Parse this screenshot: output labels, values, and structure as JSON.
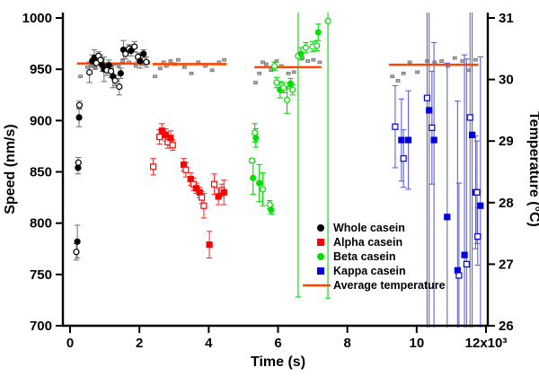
{
  "chart_data": {
    "type": "scatter",
    "title": "",
    "xlabel": "Time (s)",
    "ylabel_left": "Speed (nm/s)",
    "ylabel_right": "Temperature (°C)",
    "axes": {
      "x": {
        "label": "Time (s)",
        "range": [
          0,
          12000
        ],
        "ticks": [
          0,
          2000,
          4000,
          6000,
          8000,
          10000,
          12000
        ],
        "tick_labels": [
          "0",
          "2",
          "4",
          "6",
          "8",
          "10",
          "12x10³"
        ]
      },
      "y_left": {
        "label": "Speed (nm/s)",
        "range": [
          700,
          1000
        ],
        "ticks": [
          700,
          750,
          800,
          850,
          900,
          950,
          1000
        ]
      },
      "y_right": {
        "label": "Temperature (°C)",
        "range": [
          26,
          31
        ],
        "ticks": [
          26,
          27,
          28,
          29,
          30,
          31
        ]
      }
    },
    "grid": false,
    "legend": {
      "position": "lower-middle-right",
      "items": [
        {
          "label": "Whole casein",
          "marker": "circle",
          "color": "#000000"
        },
        {
          "label": "Alpha casein",
          "marker": "square",
          "color": "#FF0000"
        },
        {
          "label": "Beta casein",
          "marker": "circle",
          "color": "#00DD00"
        },
        {
          "label": "Kappa casein",
          "marker": "square",
          "color": "#0000DD"
        },
        {
          "label": "Average temperature",
          "marker": "line",
          "color": "#FF4500"
        }
      ]
    },
    "avg_temperature": {
      "color": "#FF4500",
      "segments": [
        {
          "t0": 200,
          "t1": 2300,
          "temp": 30.26
        },
        {
          "t0": 2380,
          "t1": 4520,
          "temp": 30.25
        },
        {
          "t0": 5320,
          "t1": 7250,
          "temp": 30.2
        },
        {
          "t0": 9200,
          "t1": 11780,
          "temp": 30.24
        }
      ]
    },
    "temperature_points": {
      "color": "#AAAAAA",
      "border": "#666666",
      "values": [
        [
          300,
          30.05
        ],
        [
          500,
          30.2
        ],
        [
          620,
          30.22
        ],
        [
          720,
          30.18
        ],
        [
          900,
          30.28
        ],
        [
          1050,
          30.25
        ],
        [
          1200,
          30.2
        ],
        [
          1400,
          30.22
        ],
        [
          1520,
          30.3
        ],
        [
          1700,
          30.28
        ],
        [
          1900,
          30.22
        ],
        [
          2100,
          30.25
        ],
        [
          2250,
          30.28
        ],
        [
          2450,
          30.05
        ],
        [
          2600,
          30.18
        ],
        [
          2700,
          30.28
        ],
        [
          2780,
          30.22
        ],
        [
          2900,
          30.3
        ],
        [
          3020,
          30.25
        ],
        [
          3120,
          30.32
        ],
        [
          3300,
          30.2
        ],
        [
          3500,
          30.1
        ],
        [
          3700,
          30.28
        ],
        [
          3900,
          30.22
        ],
        [
          4100,
          30.15
        ],
        [
          4300,
          30.28
        ],
        [
          4450,
          30.32
        ],
        [
          5350,
          29.95
        ],
        [
          5460,
          30.1
        ],
        [
          5560,
          30.28
        ],
        [
          5660,
          30.25
        ],
        [
          5800,
          30.15
        ],
        [
          5960,
          30.3
        ],
        [
          6100,
          30.22
        ],
        [
          6300,
          30.1
        ],
        [
          6460,
          30.12
        ],
        [
          6700,
          30.35
        ],
        [
          6860,
          30.3
        ],
        [
          7020,
          30.32
        ],
        [
          7200,
          30.28
        ],
        [
          9300,
          30.05
        ],
        [
          9460,
          29.98
        ],
        [
          9620,
          30.1
        ],
        [
          9800,
          30.28
        ],
        [
          10020,
          30.12
        ],
        [
          10300,
          30.3
        ],
        [
          10520,
          30.28
        ],
        [
          10720,
          30.3
        ],
        [
          10900,
          30.22
        ],
        [
          11100,
          30.35
        ],
        [
          11320,
          30.3
        ],
        [
          11500,
          30.15
        ],
        [
          11700,
          30.32
        ]
      ]
    },
    "series": [
      {
        "name": "Whole casein",
        "marker": "circle",
        "color": "#000000",
        "bar_color": "#777777",
        "points": [
          {
            "t": 180,
            "v": 772,
            "open": 1,
            "err": 8
          },
          {
            "t": 210,
            "v": 782,
            "err": 16
          },
          {
            "t": 230,
            "v": 854,
            "err": 6
          },
          {
            "t": 240,
            "v": 859,
            "open": 1,
            "err": 5
          },
          {
            "t": 260,
            "v": 903,
            "err": 9
          },
          {
            "t": 270,
            "v": 915,
            "open": 1,
            "err": 4
          },
          {
            "t": 560,
            "v": 947,
            "open": 1,
            "err": 10
          },
          {
            "t": 640,
            "v": 958,
            "err": 6
          },
          {
            "t": 700,
            "v": 961,
            "err": 8
          },
          {
            "t": 760,
            "v": 956,
            "open": 1,
            "err": 5
          },
          {
            "t": 820,
            "v": 963,
            "open": 1,
            "err": 4
          },
          {
            "t": 880,
            "v": 959,
            "open": 1,
            "err": 5
          },
          {
            "t": 930,
            "v": 954,
            "err": 6
          },
          {
            "t": 980,
            "v": 950,
            "err": 12
          },
          {
            "t": 1060,
            "v": 949,
            "open": 1,
            "err": 5
          },
          {
            "t": 1120,
            "v": 954,
            "err": 5
          },
          {
            "t": 1180,
            "v": 948,
            "open": 1,
            "err": 6
          },
          {
            "t": 1240,
            "v": 943,
            "err": 11
          },
          {
            "t": 1300,
            "v": 939,
            "open": 1,
            "err": 5
          },
          {
            "t": 1420,
            "v": 933,
            "open": 1,
            "err": 8
          },
          {
            "t": 1460,
            "v": 946,
            "err": 5
          },
          {
            "t": 1540,
            "v": 969,
            "err": 9
          },
          {
            "t": 1600,
            "v": 965,
            "open": 1,
            "err": 5
          },
          {
            "t": 1700,
            "v": 970,
            "open": 1,
            "err": 4
          },
          {
            "t": 1760,
            "v": 968,
            "err": 5
          },
          {
            "t": 1860,
            "v": 972,
            "open": 1,
            "err": 5
          },
          {
            "t": 1960,
            "v": 962,
            "open": 1,
            "err": 4
          },
          {
            "t": 2020,
            "v": 958,
            "err": 7
          },
          {
            "t": 2120,
            "v": 965,
            "err": 4
          },
          {
            "t": 2200,
            "v": 957,
            "open": 1,
            "err": 5
          }
        ]
      },
      {
        "name": "Alpha casein",
        "marker": "square",
        "color": "#FF0000",
        "bar_color": "#FF3333",
        "points": [
          {
            "t": 2400,
            "v": 855,
            "open": 1,
            "err": 8
          },
          {
            "t": 2580,
            "v": 884,
            "open": 1,
            "err": 7
          },
          {
            "t": 2650,
            "v": 890,
            "err": 7
          },
          {
            "t": 2760,
            "v": 886,
            "err": 6
          },
          {
            "t": 2820,
            "v": 879,
            "open": 1,
            "err": 6
          },
          {
            "t": 2900,
            "v": 883,
            "err": 7
          },
          {
            "t": 2960,
            "v": 876,
            "open": 1,
            "err": 5
          },
          {
            "t": 3280,
            "v": 857,
            "err": 6
          },
          {
            "t": 3340,
            "v": 852,
            "open": 1,
            "err": 7
          },
          {
            "t": 3480,
            "v": 843,
            "err": 6
          },
          {
            "t": 3560,
            "v": 838,
            "open": 1,
            "err": 6
          },
          {
            "t": 3640,
            "v": 834,
            "err": 5
          },
          {
            "t": 3740,
            "v": 830,
            "err": 5
          },
          {
            "t": 3800,
            "v": 825,
            "open": 1,
            "err": 6
          },
          {
            "t": 3860,
            "v": 817,
            "open": 1,
            "err": 12
          },
          {
            "t": 4020,
            "v": 779,
            "err": 13
          },
          {
            "t": 4160,
            "v": 838,
            "open": 1,
            "err": 10
          },
          {
            "t": 4280,
            "v": 826,
            "err": 8
          },
          {
            "t": 4380,
            "v": 832,
            "open": 1,
            "err": 6
          },
          {
            "t": 4440,
            "v": 830,
            "err": 12
          }
        ]
      },
      {
        "name": "Beta casein",
        "marker": "circle",
        "color": "#00DD00",
        "bar_color": "#00DD00",
        "points": [
          {
            "t": 5250,
            "v": 861,
            "open": 1,
            "err": 2
          },
          {
            "t": 5280,
            "v": 844,
            "err": 16
          },
          {
            "t": 5330,
            "v": 888,
            "open": 1,
            "err": 9
          },
          {
            "t": 5360,
            "v": 883,
            "err": 9
          },
          {
            "t": 5460,
            "v": 839,
            "err": 18
          },
          {
            "t": 5560,
            "v": 833,
            "open": 1,
            "err": 16
          },
          {
            "t": 5760,
            "v": 818,
            "open": 1,
            "err": 4
          },
          {
            "t": 5800,
            "v": 813,
            "err": 4
          },
          {
            "t": 5900,
            "v": 953,
            "open": 1,
            "err": 4
          },
          {
            "t": 5960,
            "v": 937,
            "open": 1,
            "err": 5
          },
          {
            "t": 6060,
            "v": 930,
            "err": 8
          },
          {
            "t": 6160,
            "v": 932,
            "open": 1,
            "err": 5
          },
          {
            "t": 6260,
            "v": 920,
            "open": 1,
            "err": 13
          },
          {
            "t": 6360,
            "v": 936,
            "err": 5
          },
          {
            "t": 6420,
            "v": 930,
            "open": 1,
            "err": 5
          },
          {
            "t": 6580,
            "v": 963,
            "open": 1,
            "err_low": 235,
            "err_high": 45
          },
          {
            "t": 6660,
            "v": 965,
            "err": 6
          },
          {
            "t": 6800,
            "v": 971,
            "open": 1,
            "err": 5
          },
          {
            "t": 7000,
            "v": 972,
            "open": 1,
            "err": 5
          },
          {
            "t": 7120,
            "v": 973,
            "open": 1,
            "err": 5
          },
          {
            "t": 7160,
            "v": 986,
            "err": 8
          },
          {
            "t": 7440,
            "v": 997,
            "open": 1,
            "err_low": 270,
            "err_high": 15
          }
        ]
      },
      {
        "name": "Kappa casein",
        "marker": "square",
        "color": "#0000DD",
        "bar_color": "#6060E8",
        "points": [
          {
            "t": 9380,
            "v": 894,
            "open": 1,
            "err": 40
          },
          {
            "t": 9560,
            "v": 881,
            "err": 40
          },
          {
            "t": 9620,
            "v": 863,
            "open": 1,
            "err": 28
          },
          {
            "t": 9760,
            "v": 881,
            "err": 48
          },
          {
            "t": 10300,
            "v": 922,
            "open": 1,
            "err_low": 250,
            "err_high": 100
          },
          {
            "t": 10360,
            "v": 910,
            "err_low": 255,
            "err_high": 105
          },
          {
            "t": 10440,
            "v": 893,
            "open": 1,
            "err": 55
          },
          {
            "t": 10500,
            "v": 881,
            "err_low": 245,
            "err_high": 95
          },
          {
            "t": 10880,
            "v": 806,
            "err_low": 185,
            "err_high": 150
          },
          {
            "t": 11180,
            "v": 754,
            "err_low": 105,
            "err_high": 165
          },
          {
            "t": 11220,
            "v": 749,
            "open": 1,
            "err": 90
          },
          {
            "t": 11380,
            "v": 769,
            "err_low": 125,
            "err_high": 195
          },
          {
            "t": 11440,
            "v": 760,
            "open": 1,
            "err_low": 115,
            "err_high": 200
          },
          {
            "t": 11540,
            "v": 903,
            "open": 1,
            "err_low": 265,
            "err_high": 130
          },
          {
            "t": 11600,
            "v": 886,
            "err_low": 255,
            "err_high": 130
          },
          {
            "t": 11700,
            "v": 830,
            "err": 55
          },
          {
            "t": 11740,
            "v": 830,
            "open": 1,
            "err": 50
          },
          {
            "t": 11760,
            "v": 787,
            "open": 1,
            "err": 28
          },
          {
            "t": 11840,
            "v": 817,
            "err_low": 205,
            "err_high": 145
          }
        ]
      }
    ]
  }
}
